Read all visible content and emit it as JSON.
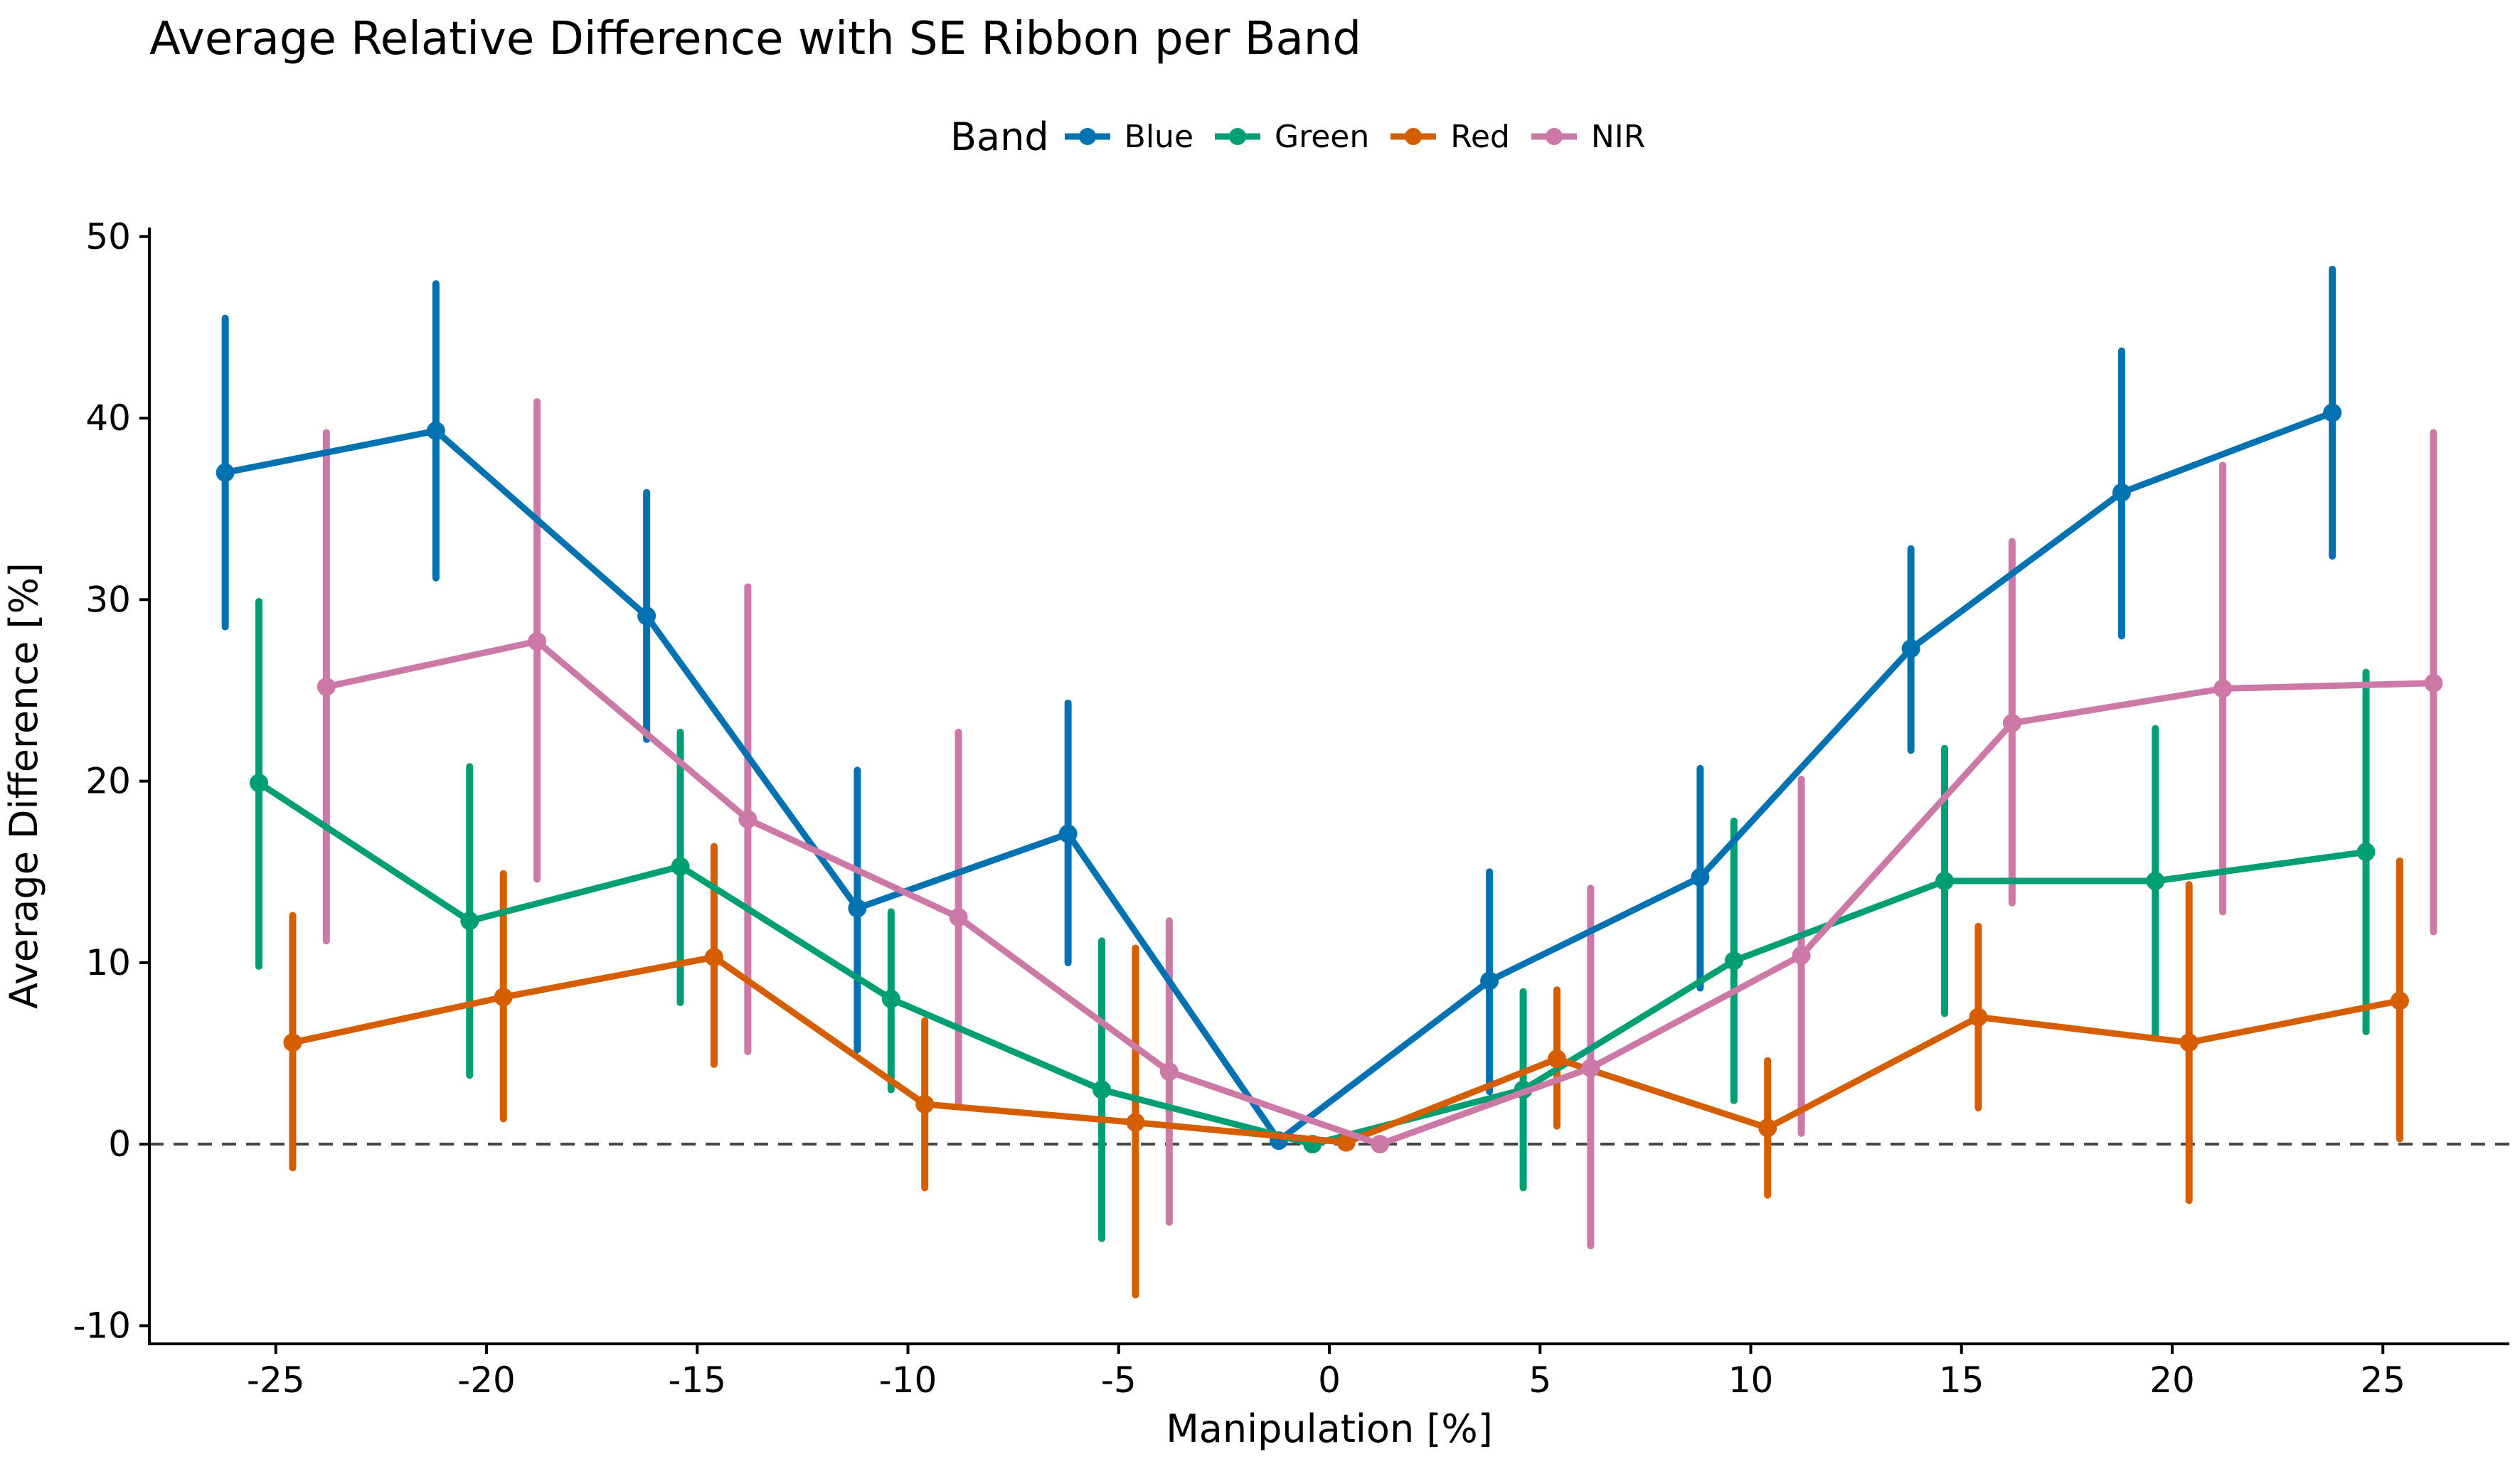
{
  "chart_data": {
    "type": "line",
    "title": "Average Relative Difference with SE Ribbon per Band",
    "xlabel": "Manipulation [%]",
    "ylabel": "Average Difference [%]",
    "legend_title": "Band",
    "legend_position": "top",
    "xlim": [
      -28,
      28
    ],
    "ylim": [
      -11,
      50.5
    ],
    "xticks": [
      -25,
      -20,
      -15,
      -10,
      -5,
      0,
      5,
      10,
      15,
      20,
      25
    ],
    "xtick_labels": [
      "-25",
      "-20",
      "-15",
      "-10",
      "-5",
      "0",
      "5",
      "10",
      "15",
      "20",
      "25"
    ],
    "yticks": [
      -10,
      0,
      10,
      20,
      30,
      40,
      50
    ],
    "ytick_labels": [
      "-10",
      "0",
      "10",
      "20",
      "30",
      "40",
      "50"
    ],
    "reference_line": {
      "y": 0,
      "style": "dashed"
    },
    "grid": false,
    "x": [
      -25,
      -20,
      -15,
      -10,
      -5,
      0,
      5,
      10,
      15,
      20,
      25
    ],
    "series": [
      {
        "name": "Blue",
        "color": "#0072B2",
        "values": [
          37.0,
          39.3,
          29.1,
          13.0,
          17.1,
          0.2,
          9.0,
          14.7,
          27.3,
          35.9,
          40.3
        ],
        "lower": [
          28.5,
          31.2,
          22.3,
          5.2,
          10.0,
          0.0,
          2.9,
          8.6,
          21.7,
          28.0,
          32.4
        ],
        "upper": [
          45.5,
          47.4,
          35.9,
          20.6,
          24.3,
          0.4,
          15.0,
          20.7,
          32.8,
          43.7,
          48.2
        ]
      },
      {
        "name": "Green",
        "color": "#009E73",
        "values": [
          19.9,
          12.3,
          15.3,
          8.0,
          3.0,
          0.0,
          3.0,
          10.1,
          14.5,
          14.5,
          16.1
        ],
        "lower": [
          9.8,
          3.8,
          7.8,
          3.0,
          -5.2,
          0.0,
          -2.4,
          2.4,
          7.2,
          6.0,
          6.2
        ],
        "upper": [
          29.9,
          20.8,
          22.7,
          12.8,
          11.2,
          0.0,
          8.4,
          17.8,
          21.8,
          22.9,
          26.0
        ]
      },
      {
        "name": "Red",
        "color": "#D55E00",
        "values": [
          5.6,
          8.1,
          10.3,
          2.2,
          1.2,
          0.1,
          4.7,
          0.9,
          7.0,
          5.6,
          7.9
        ],
        "lower": [
          -1.3,
          1.4,
          4.4,
          -2.4,
          -8.3,
          0.0,
          1.0,
          -2.8,
          2.0,
          -3.1,
          0.3
        ],
        "upper": [
          12.6,
          14.9,
          16.4,
          6.8,
          10.8,
          0.2,
          8.5,
          4.6,
          12.0,
          14.3,
          15.6
        ]
      },
      {
        "name": "NIR",
        "color": "#CC79A7",
        "values": [
          25.2,
          27.7,
          17.9,
          12.5,
          4.0,
          0.0,
          4.2,
          10.4,
          23.2,
          25.1,
          25.4
        ],
        "lower": [
          11.2,
          14.6,
          5.1,
          2.3,
          -4.3,
          0.0,
          -5.6,
          0.6,
          13.3,
          12.8,
          11.7
        ],
        "upper": [
          39.2,
          40.9,
          30.7,
          22.7,
          12.3,
          0.0,
          14.1,
          20.1,
          33.2,
          37.4,
          39.2
        ]
      }
    ]
  }
}
